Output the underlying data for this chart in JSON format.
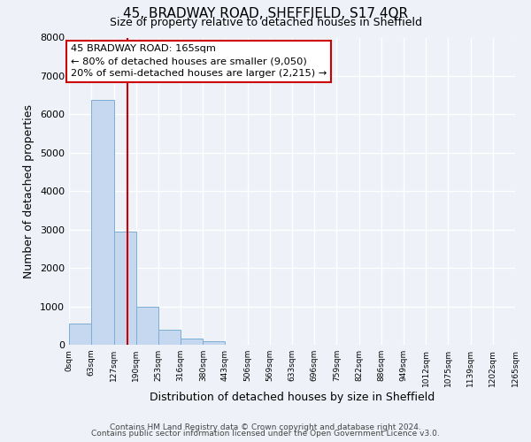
{
  "title": "45, BRADWAY ROAD, SHEFFIELD, S17 4QR",
  "subtitle": "Size of property relative to detached houses in Sheffield",
  "xlabel": "Distribution of detached houses by size in Sheffield",
  "ylabel": "Number of detached properties",
  "bin_edges": [
    0,
    63,
    127,
    190,
    253,
    316,
    380,
    443,
    506,
    569,
    633,
    696,
    759,
    822,
    886,
    949,
    1012,
    1075,
    1139,
    1202,
    1265
  ],
  "bin_labels": [
    "0sqm",
    "63sqm",
    "127sqm",
    "190sqm",
    "253sqm",
    "316sqm",
    "380sqm",
    "443sqm",
    "506sqm",
    "569sqm",
    "633sqm",
    "696sqm",
    "759sqm",
    "822sqm",
    "886sqm",
    "949sqm",
    "1012sqm",
    "1075sqm",
    "1139sqm",
    "1202sqm",
    "1265sqm"
  ],
  "bar_heights": [
    560,
    6380,
    2940,
    990,
    380,
    160,
    90,
    0,
    0,
    0,
    0,
    0,
    0,
    0,
    0,
    0,
    0,
    0,
    0,
    0
  ],
  "bar_color": "#c5d8f0",
  "bar_edge_color": "#7bafd4",
  "vline_color": "#cc0000",
  "vline_x": 165,
  "ylim": [
    0,
    8000
  ],
  "yticks": [
    0,
    1000,
    2000,
    3000,
    4000,
    5000,
    6000,
    7000,
    8000
  ],
  "annotation_title": "45 BRADWAY ROAD: 165sqm",
  "annotation_line1": "← 80% of detached houses are smaller (9,050)",
  "annotation_line2": "20% of semi-detached houses are larger (2,215) →",
  "annotation_box_color": "#ffffff",
  "annotation_box_edge": "#cc0000",
  "footer1": "Contains HM Land Registry data © Crown copyright and database right 2024.",
  "footer2": "Contains public sector information licensed under the Open Government Licence v3.0.",
  "bg_color": "#eef2f8",
  "plot_bg_color": "#eef2f8",
  "grid_color": "#ffffff",
  "figsize": [
    6.0,
    5.0
  ],
  "dpi": 100
}
